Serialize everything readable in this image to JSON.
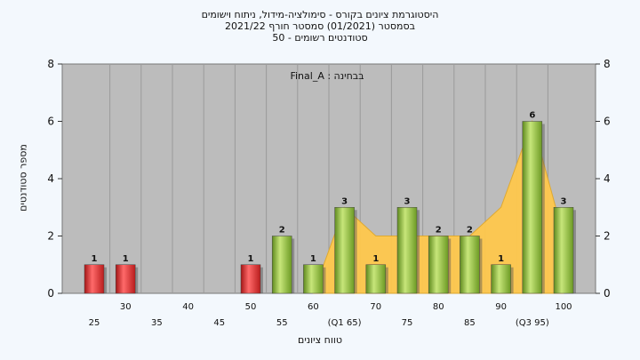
{
  "titles": {
    "line1": "היסטוגרמת ציונים בקורס - סימולציה-מידול, ניתוח וישומים",
    "line2": "בסמסטר  (01/2021)  סמסטר חורף 2021/22",
    "line3": "סטודנטים רשומים - 50"
  },
  "annotation": "בבחינה : Final_A",
  "colors": {
    "plot_bg": "#bcbcbc",
    "page_bg": "#f3f8fd",
    "red_bar": "#e03535",
    "green_bar": "#8fbf3c",
    "area": "#ffc84d"
  },
  "chart_data": {
    "type": "bar",
    "title": "",
    "xlabel": "טווח ציונים",
    "ylabel": "מספר סטודנטים",
    "ylim": [
      0,
      8
    ],
    "yticks": [
      0,
      2,
      4,
      6,
      8
    ],
    "y2ticks": [
      0,
      2,
      4,
      6,
      8
    ],
    "grid": "vertical",
    "categories": [
      "25",
      "30",
      "35",
      "40",
      "45",
      "50",
      "55",
      "60",
      "(Q1 65)",
      "70",
      "75",
      "80",
      "85",
      "90",
      "(Q3 95)",
      "100"
    ],
    "values": [
      1,
      1,
      0,
      0,
      0,
      1,
      2,
      1,
      3,
      1,
      3,
      2,
      2,
      1,
      6,
      3
    ],
    "data_labels": [
      "1",
      "1",
      "",
      "",
      "",
      "1",
      "2",
      "1",
      "3",
      "1",
      "3",
      "2",
      "2",
      "1",
      "6",
      "3"
    ],
    "bar_colors": [
      "red",
      "red",
      "",
      "",
      "",
      "red",
      "green",
      "green",
      "green",
      "green",
      "green",
      "green",
      "green",
      "green",
      "green",
      "green"
    ],
    "area_series": [
      {
        "x": "60",
        "y": 0
      },
      {
        "x": "(Q1 65)",
        "y": 3
      },
      {
        "x": "70",
        "y": 2
      },
      {
        "x": "75",
        "y": 2
      },
      {
        "x": "80",
        "y": 2
      },
      {
        "x": "85",
        "y": 2
      },
      {
        "x": "90",
        "y": 3
      },
      {
        "x": "(Q3 95)",
        "y": 6
      },
      {
        "x": "100",
        "y": 2
      }
    ]
  }
}
